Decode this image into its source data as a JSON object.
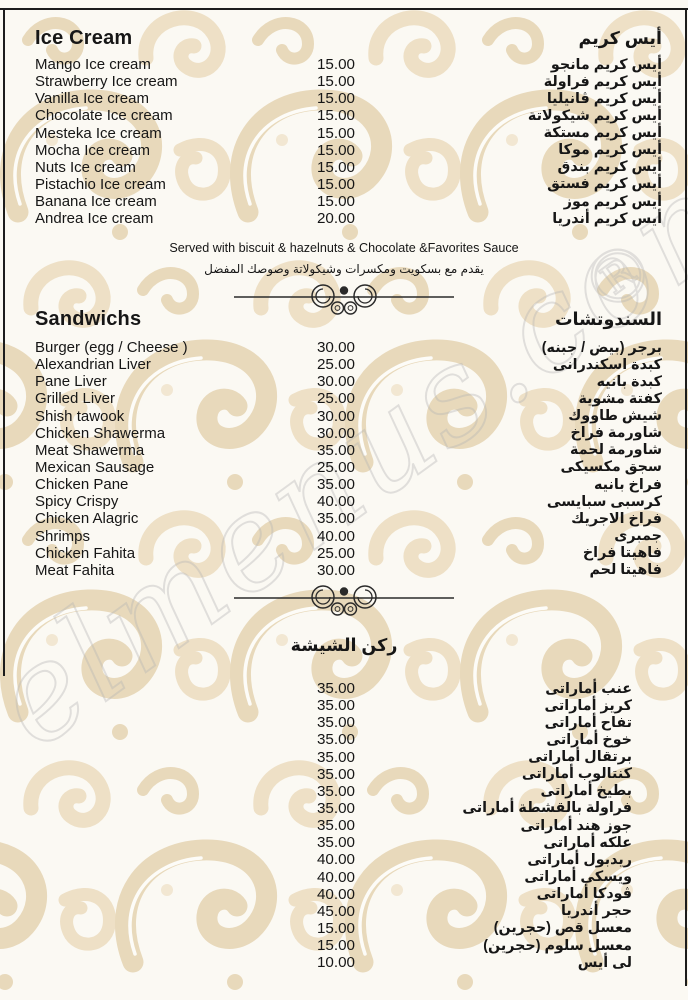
{
  "colors": {
    "pattern_beige": "#e8d9bb",
    "pattern_beige_light": "#efe2c9",
    "text": "#161616",
    "border_black": "#1c1c1c",
    "watermark_gray": "#b5b5b5",
    "page_background": "#fbf9f3"
  },
  "watermark": {
    "text": "elmenus.com",
    "mark": "®"
  },
  "sections": {
    "ice_cream": {
      "title_en": "Ice Cream",
      "title_ar": "أيس كريم",
      "items": [
        {
          "en": "Mango Ice cream",
          "price": "15.00",
          "ar": "أيس كريم مانجو"
        },
        {
          "en": "Strawberry Ice cream",
          "price": "15.00",
          "ar": "أيس كريم فراولة"
        },
        {
          "en": "Vanilla Ice cream",
          "price": "15.00",
          "ar": "أيس كريم ڤانيليا"
        },
        {
          "en": "Chocolate Ice cream",
          "price": "15.00",
          "ar": "أيس كريم شيكولاتة"
        },
        {
          "en": "Mesteka Ice cream",
          "price": "15.00",
          "ar": "أيس كريم مستكة"
        },
        {
          "en": "Mocha Ice cream",
          "price": "15.00",
          "ar": "أيس كريم موكا"
        },
        {
          "en": "Nuts Ice cream",
          "price": "15.00",
          "ar": "أيس كريم بندق"
        },
        {
          "en": "Pistachio Ice cream",
          "price": "15.00",
          "ar": "أيس كريم فستق"
        },
        {
          "en": "Banana Ice cream",
          "price": "15.00",
          "ar": "أيس كريم موز"
        },
        {
          "en": "Andrea Ice cream",
          "price": "20.00",
          "ar": "أيس كريم أندريا"
        }
      ],
      "note_en": "Served with biscuit & hazelnuts & Chocolate &Favorites Sauce",
      "note_ar": "يقدم مع بسكويت ومكسرات وشيكولاتة وصوصك المفضل"
    },
    "sandwiches": {
      "title_en": "Sandwichs",
      "title_ar": "السندوتشات",
      "items": [
        {
          "en": "Burger (egg / Cheese )",
          "price": "30.00",
          "ar": "برجر (بيض / جبنه)"
        },
        {
          "en": "Alexandrian Liver",
          "price": "25.00",
          "ar": "كبدة اسكندرانى"
        },
        {
          "en": "Pane Liver",
          "price": "30.00",
          "ar": "كبدة بانيه"
        },
        {
          "en": "Grilled Liver",
          "price": "25.00",
          "ar": "كفتة مشوية"
        },
        {
          "en": "Shish tawook",
          "price": "30.00",
          "ar": "شيش طاووك"
        },
        {
          "en": "Chicken Shawerma",
          "price": "30.00",
          "ar": "شاورمة فراخ"
        },
        {
          "en": "Meat Shawerma",
          "price": "35.00",
          "ar": "شاورمة لحمة"
        },
        {
          "en": "Mexican Sausage",
          "price": "25.00",
          "ar": "سجق مكسيكى"
        },
        {
          "en": "Chicken Pane",
          "price": "35.00",
          "ar": "فراخ بانيه"
        },
        {
          "en": "Spicy Crispy",
          "price": "40.00",
          "ar": "كرسبى سبايسى"
        },
        {
          "en": "Chicken Alagric",
          "price": "35.00",
          "ar": "فراخ الاجريك"
        },
        {
          "en": "Shrimps",
          "price": "40.00",
          "ar": "جمبرى"
        },
        {
          "en": "Chicken Fahita",
          "price": "25.00",
          "ar": "فاهيتا فراخ"
        },
        {
          "en": "Meat Fahita",
          "price": "30.00",
          "ar": "فاهيتا لحم"
        }
      ]
    },
    "shisha": {
      "title_ar": "ركن الشيشة",
      "items": [
        {
          "price": "35.00",
          "ar": "عنب أماراتى"
        },
        {
          "price": "35.00",
          "ar": "كريز أماراتى"
        },
        {
          "price": "35.00",
          "ar": "تفاح أماراتى"
        },
        {
          "price": "35.00",
          "ar": "خوخ أماراتى"
        },
        {
          "price": "35.00",
          "ar": "برتقال أماراتى"
        },
        {
          "price": "35.00",
          "ar": "كنتالوب أماراتى"
        },
        {
          "price": "35.00",
          "ar": "بطيخ أماراتى"
        },
        {
          "price": "35.00",
          "ar": "فراولة بالقشطة أماراتى"
        },
        {
          "price": "35.00",
          "ar": "جوز هند أماراتى"
        },
        {
          "price": "35.00",
          "ar": "علكه أماراتى"
        },
        {
          "price": "40.00",
          "ar": "ريدبول أماراتى"
        },
        {
          "price": "40.00",
          "ar": "ويسكى أماراتى"
        },
        {
          "price": "40.00",
          "ar": "ڤودكا أماراتى"
        },
        {
          "price": "45.00",
          "ar": "حجر أندريا"
        },
        {
          "price": "15.00",
          "ar": "معسل قص (حجرين)"
        },
        {
          "price": "15.00",
          "ar": "معسل سلوم (حجرين)"
        },
        {
          "price": "10.00",
          "ar": "لى أيس"
        }
      ]
    }
  }
}
